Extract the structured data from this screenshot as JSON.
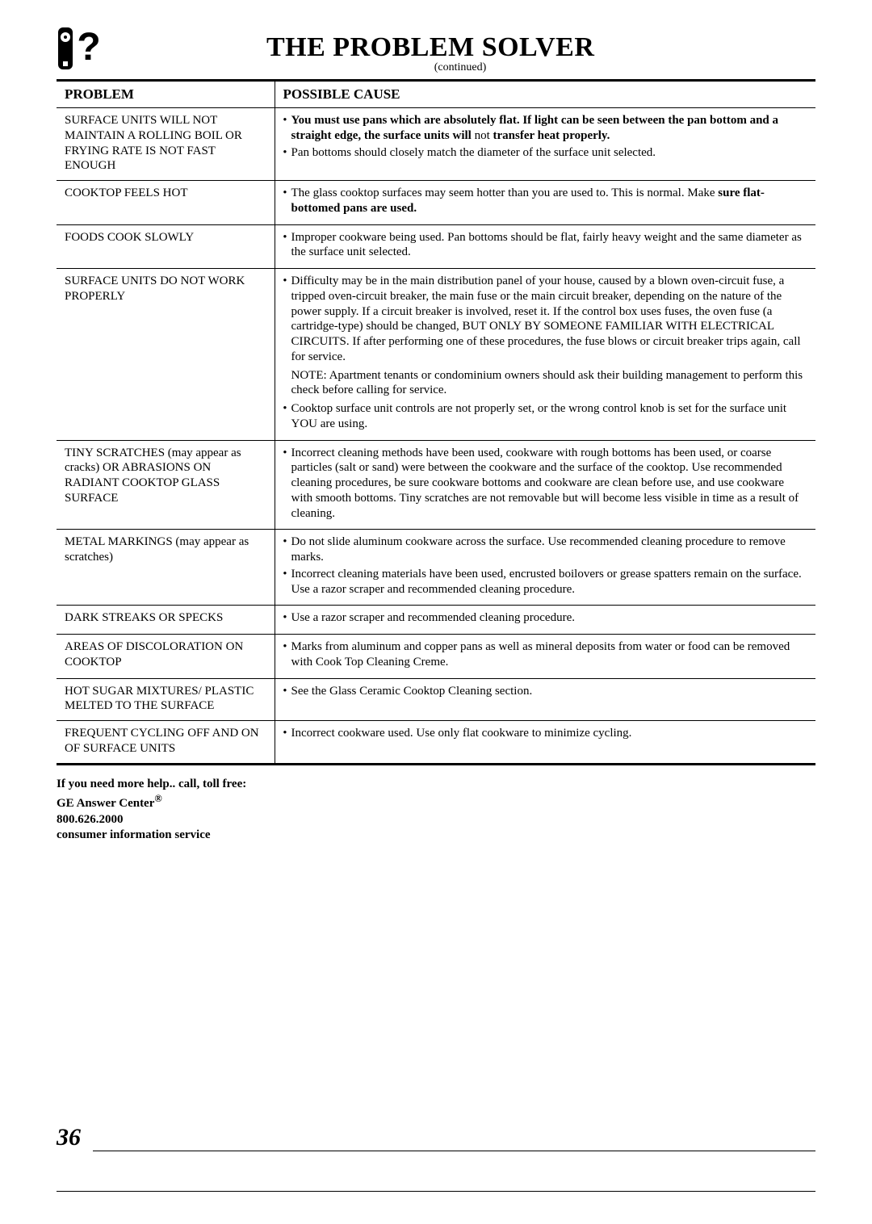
{
  "title": "THE PROBLEM SOLVER",
  "subtitle": "(continued)",
  "columns": {
    "problem": "PROBLEM",
    "cause": "POSSIBLE CAUSE"
  },
  "rows": [
    {
      "problem": "SURFACE UNITS WILL NOT MAINTAIN A ROLLING BOIL OR FRYING RATE IS NOT FAST ENOUGH",
      "items": [
        "<b>You must use pans which are absolutely flat. If light can be seen between the pan bottom and a straight edge, the surface units will</b> not <b>transfer heat properly.</b>",
        "Pan bottoms should closely match the diameter of the surface unit selected."
      ]
    },
    {
      "problem": "COOKTOP FEELS HOT",
      "items": [
        "The glass cooktop surfaces may seem hotter than you are used to. This is normal. Make <b>sure flat-bottomed pans are used.</b>"
      ]
    },
    {
      "problem": "FOODS COOK SLOWLY",
      "items": [
        "Improper cookware being used. Pan bottoms should be flat, fairly heavy weight and the same diameter as the surface unit selected."
      ]
    },
    {
      "problem": "SURFACE UNITS DO NOT WORK PROPERLY",
      "items": [
        "Difficulty may be in the main distribution panel of your house, caused by a blown oven-circuit fuse, a tripped oven-circuit breaker, the main fuse or the main circuit breaker, depending on the nature of the power supply. If a circuit breaker is involved, reset it. If the control box uses fuses, the oven fuse (a cartridge-type) should be changed, BUT ONLY BY SOMEONE FAMILIAR WITH ELECTRICAL CIRCUITS. If after performing one of these procedures, the fuse blows or circuit breaker trips again, call for service."
      ],
      "note": "NOTE: Apartment tenants or condominium owners should ask their building management to perform this check before calling for service.",
      "items2": [
        "Cooktop surface unit controls are not properly set, or the wrong control knob is set for the surface unit YOU are using."
      ]
    },
    {
      "problem": "TINY SCRATCHES (may appear as cracks) OR ABRASIONS ON RADIANT COOKTOP GLASS SURFACE",
      "items": [
        "Incorrect cleaning methods have been used, cookware with rough bottoms has been used, or coarse particles (salt or sand) were between the cookware and the surface of the cooktop. Use recommended cleaning procedures, be sure cookware bottoms and cookware are clean before use, and use cookware with smooth bottoms. Tiny scratches are not removable but will become less visible in time as a result of cleaning."
      ]
    },
    {
      "problem": "METAL MARKINGS (may appear as scratches)",
      "items": [
        "Do not slide aluminum cookware across the surface. Use recommended cleaning procedure to remove marks.",
        "Incorrect cleaning materials have been used, encrusted boilovers or grease spatters remain on the surface. Use a razor scraper and recommended cleaning procedure."
      ]
    },
    {
      "problem": "DARK STREAKS OR SPECKS",
      "items": [
        "Use a razor scraper and recommended cleaning procedure."
      ]
    },
    {
      "problem": "AREAS OF DISCOLORATION ON COOKTOP",
      "items": [
        "Marks from aluminum and copper pans as well as mineral deposits from water or food can be removed with Cook Top Cleaning Creme."
      ]
    },
    {
      "problem": "HOT SUGAR MIXTURES/ PLASTIC MELTED TO THE SURFACE",
      "items": [
        "See the Glass Ceramic Cooktop Cleaning section."
      ]
    },
    {
      "problem": "FREQUENT CYCLING OFF AND ON OF SURFACE UNITS",
      "items": [
        "Incorrect cookware used. Use only flat cookware to minimize cycling."
      ]
    }
  ],
  "footer": {
    "line1": "If you need more help.. call, toll free:",
    "line2": "GE Answer Center",
    "reg": "®",
    "line3": "800.626.2000",
    "line4": "consumer information service"
  },
  "page": "36"
}
